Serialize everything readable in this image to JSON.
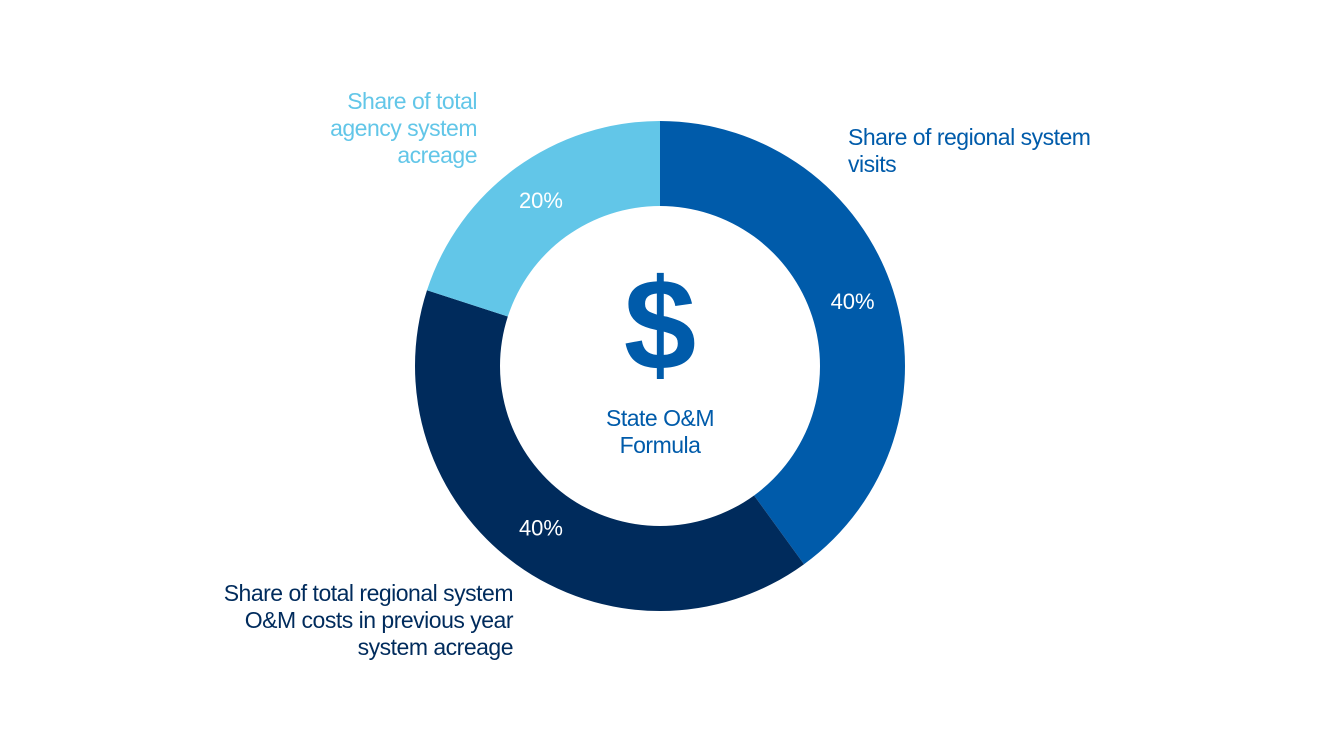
{
  "chart_data": {
    "type": "donut",
    "categories": [
      "Share of regional system visits",
      "Share of total regional system O&M costs in previous year system acreage",
      "Share of total agency system acreage"
    ],
    "values": [
      40,
      40,
      20
    ],
    "value_labels": [
      "40%",
      "40%",
      "20%"
    ],
    "colors": [
      "#005baa",
      "#002b5c",
      "#62c6e8"
    ],
    "center_symbol": "$",
    "center_label": "State O&M Formula"
  }
}
